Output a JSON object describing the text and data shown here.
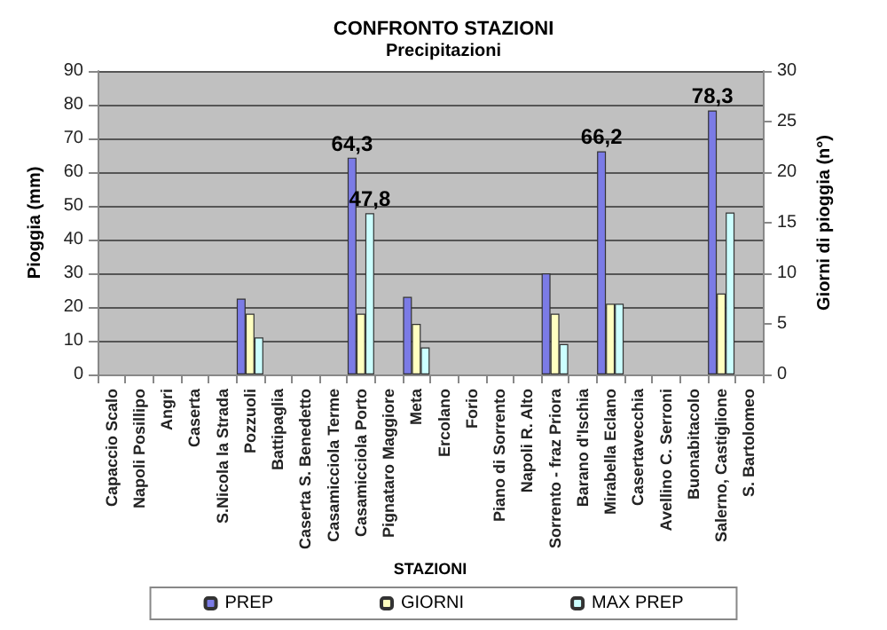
{
  "chart_data": {
    "type": "bar",
    "title": "CONFRONTO STAZIONI",
    "subtitle": "Precipitazioni",
    "xlabel": "STAZIONI",
    "ylabel": "Pioggia (mm)",
    "y2label": "Giorni di pioggia (n°)",
    "categories": [
      "Capaccio Scalo",
      "Napoli Posillipo",
      "Angri",
      "Caserta",
      "S.Nicola la Strada",
      "Pozzuoli",
      "Battipaglia",
      "Caserta S. Benedetto",
      "Casamicciola Terme",
      "Casamicciola Porto",
      "Pignataro Maggiore",
      "Meta",
      "Ercolano",
      "Forio",
      "Piano di Sorrento",
      "Napoli R. Alto",
      "Sorrento - fraz Priora",
      "Barano d'Ischia",
      "Mirabella Eclano",
      "Casertavecchia",
      "Avellino C. Serroni",
      "Buonabitacolo",
      "Salerno, Castiglione",
      "S. Bartolomeo"
    ],
    "series": [
      {
        "name": "PREP",
        "color": "#7b7be6",
        "values": [
          null,
          null,
          null,
          null,
          null,
          22.5,
          null,
          null,
          null,
          64.3,
          null,
          23,
          null,
          null,
          null,
          null,
          30,
          null,
          66.2,
          null,
          null,
          null,
          78.3,
          null
        ],
        "value_labels": [
          null,
          null,
          null,
          null,
          null,
          null,
          null,
          null,
          null,
          "64,3",
          null,
          null,
          null,
          null,
          null,
          null,
          null,
          null,
          "66,2",
          null,
          null,
          null,
          "78,3",
          null
        ]
      },
      {
        "name": "GIORNI",
        "color": "#ffffc0",
        "axis": "y2",
        "values": [
          null,
          null,
          null,
          null,
          null,
          6,
          null,
          null,
          null,
          6,
          null,
          5,
          null,
          null,
          null,
          null,
          6,
          null,
          7,
          null,
          null,
          null,
          8,
          null
        ]
      },
      {
        "name": "MAX PREP",
        "color": "#ccffff",
        "values": [
          null,
          null,
          null,
          null,
          null,
          11,
          null,
          null,
          null,
          47.8,
          null,
          8,
          null,
          null,
          null,
          null,
          9,
          null,
          21,
          null,
          null,
          null,
          48,
          null
        ],
        "value_labels": [
          null,
          null,
          null,
          null,
          null,
          null,
          null,
          null,
          null,
          "47,8",
          null,
          null,
          null,
          null,
          null,
          null,
          null,
          null,
          null,
          null,
          null,
          null,
          null,
          null
        ]
      }
    ],
    "ylim": [
      0,
      90
    ],
    "yticks": [
      0,
      10,
      20,
      30,
      40,
      50,
      60,
      70,
      80,
      90
    ],
    "y2lim": [
      0,
      30
    ],
    "y2ticks": [
      0,
      5,
      10,
      15,
      20,
      25,
      30
    ],
    "grid": "y",
    "legend": "bottom"
  }
}
